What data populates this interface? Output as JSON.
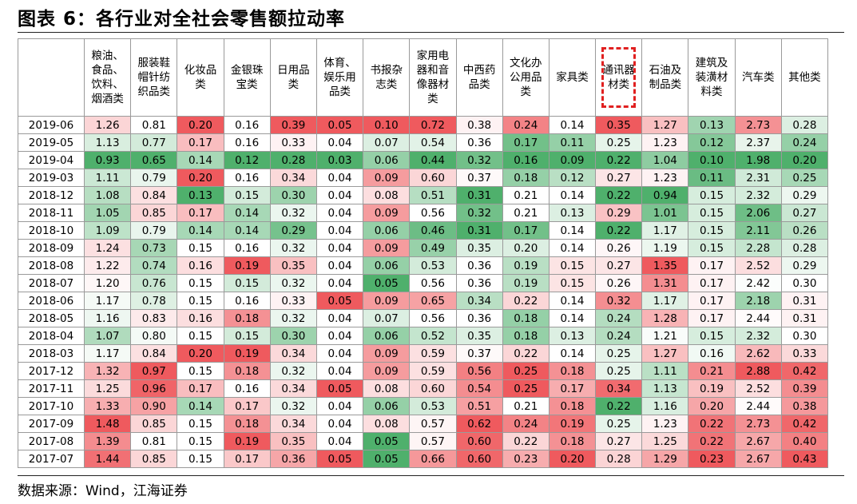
{
  "title": "图表 6：各行业对全社会零售额拉动率",
  "source": "数据来源：Wind，江海证券",
  "chart_data": {
    "type": "table",
    "highlighted_column": "通讯器材类",
    "color_scale": {
      "low": "#4fb06c",
      "mid": "#ffffff",
      "high": "#ef5a5e"
    },
    "columns": [
      "粮油、食品、饮料、烟酒类",
      "服装鞋帽针纺织品类",
      "化妆品类",
      "金银珠宝类",
      "日用品类",
      "体育、娱乐用品类",
      "书报杂志类",
      "家用电器和音像器材类",
      "中西药品类",
      "文化办公用品类",
      "家具类",
      "通讯器材类",
      "石油及制品类",
      "建筑及装潢材料类",
      "汽车类",
      "其他类"
    ],
    "rows": [
      {
        "date": "2019-06",
        "values": [
          "1.26",
          "0.81",
          "0.20",
          "0.16",
          "0.39",
          "0.05",
          "0.10",
          "0.72",
          "0.38",
          "0.24",
          "0.14",
          "0.35",
          "1.27",
          "0.13",
          "2.73",
          "0.28"
        ]
      },
      {
        "date": "2019-05",
        "values": [
          "1.13",
          "0.77",
          "0.17",
          "0.16",
          "0.33",
          "0.04",
          "0.07",
          "0.54",
          "0.36",
          "0.17",
          "0.11",
          "0.25",
          "1.23",
          "0.12",
          "2.37",
          "0.24"
        ]
      },
      {
        "date": "2019-04",
        "values": [
          "0.93",
          "0.65",
          "0.14",
          "0.12",
          "0.28",
          "0.03",
          "0.06",
          "0.44",
          "0.32",
          "0.16",
          "0.09",
          "0.22",
          "1.04",
          "0.10",
          "1.98",
          "0.20"
        ]
      },
      {
        "date": "2019-03",
        "values": [
          "1.11",
          "0.79",
          "0.20",
          "0.16",
          "0.34",
          "0.04",
          "0.09",
          "0.60",
          "0.37",
          "0.18",
          "0.12",
          "0.27",
          "1.23",
          "0.11",
          "2.31",
          "0.25"
        ]
      },
      {
        "date": "2018-12",
        "values": [
          "1.08",
          "0.84",
          "0.13",
          "0.15",
          "0.30",
          "0.04",
          "0.08",
          "0.51",
          "0.31",
          "0.21",
          "0.14",
          "0.22",
          "0.94",
          "0.15",
          "2.32",
          "0.29"
        ]
      },
      {
        "date": "2018-11",
        "values": [
          "1.05",
          "0.85",
          "0.17",
          "0.14",
          "0.32",
          "0.04",
          "0.09",
          "0.56",
          "0.32",
          "0.21",
          "0.13",
          "0.29",
          "1.01",
          "0.15",
          "2.06",
          "0.27"
        ]
      },
      {
        "date": "2018-10",
        "values": [
          "1.09",
          "0.79",
          "0.14",
          "0.14",
          "0.29",
          "0.04",
          "0.06",
          "0.46",
          "0.31",
          "0.17",
          "0.14",
          "0.22",
          "1.17",
          "0.15",
          "2.11",
          "0.26"
        ]
      },
      {
        "date": "2018-09",
        "values": [
          "1.24",
          "0.73",
          "0.15",
          "0.16",
          "0.32",
          "0.04",
          "0.09",
          "0.49",
          "0.35",
          "0.20",
          "0.14",
          "0.26",
          "1.19",
          "0.15",
          "2.28",
          "0.28"
        ]
      },
      {
        "date": "2018-08",
        "values": [
          "1.22",
          "0.74",
          "0.16",
          "0.19",
          "0.35",
          "0.04",
          "0.06",
          "0.53",
          "0.36",
          "0.19",
          "0.15",
          "0.27",
          "1.35",
          "0.17",
          "2.52",
          "0.29"
        ]
      },
      {
        "date": "2018-07",
        "values": [
          "1.20",
          "0.76",
          "0.15",
          "0.15",
          "0.32",
          "0.04",
          "0.05",
          "0.56",
          "0.36",
          "0.19",
          "0.15",
          "0.26",
          "1.31",
          "0.17",
          "2.42",
          "0.30"
        ]
      },
      {
        "date": "2018-06",
        "values": [
          "1.17",
          "0.78",
          "0.15",
          "0.16",
          "0.33",
          "0.05",
          "0.09",
          "0.65",
          "0.34",
          "0.22",
          "0.14",
          "0.32",
          "1.17",
          "0.17",
          "2.18",
          "0.31"
        ]
      },
      {
        "date": "2018-05",
        "values": [
          "1.16",
          "0.83",
          "0.16",
          "0.18",
          "0.32",
          "0.04",
          "0.07",
          "0.56",
          "0.36",
          "0.18",
          "0.14",
          "0.24",
          "1.28",
          "0.17",
          "2.44",
          "0.31"
        ]
      },
      {
        "date": "2018-04",
        "values": [
          "1.07",
          "0.80",
          "0.15",
          "0.15",
          "0.30",
          "0.04",
          "0.06",
          "0.52",
          "0.35",
          "0.18",
          "0.13",
          "0.24",
          "1.21",
          "0.15",
          "2.32",
          "0.30"
        ]
      },
      {
        "date": "2018-03",
        "values": [
          "1.17",
          "0.84",
          "0.20",
          "0.19",
          "0.34",
          "0.04",
          "0.09",
          "0.59",
          "0.37",
          "0.22",
          "0.14",
          "0.25",
          "1.27",
          "0.16",
          "2.62",
          "0.33"
        ]
      },
      {
        "date": "2017-12",
        "values": [
          "1.32",
          "0.97",
          "0.15",
          "0.18",
          "0.32",
          "0.04",
          "0.09",
          "0.59",
          "0.56",
          "0.25",
          "0.18",
          "0.25",
          "1.11",
          "0.21",
          "2.88",
          "0.42"
        ]
      },
      {
        "date": "2017-11",
        "values": [
          "1.25",
          "0.96",
          "0.17",
          "0.16",
          "0.34",
          "0.05",
          "0.08",
          "0.60",
          "0.54",
          "0.25",
          "0.17",
          "0.34",
          "1.13",
          "0.19",
          "2.52",
          "0.39"
        ]
      },
      {
        "date": "2017-10",
        "values": [
          "1.33",
          "0.90",
          "0.14",
          "0.17",
          "0.32",
          "0.04",
          "0.06",
          "0.53",
          "0.51",
          "0.21",
          "0.18",
          "0.22",
          "1.16",
          "0.20",
          "2.44",
          "0.38"
        ]
      },
      {
        "date": "2017-09",
        "values": [
          "1.48",
          "0.85",
          "0.15",
          "0.18",
          "0.34",
          "0.04",
          "0.08",
          "0.57",
          "0.62",
          "0.24",
          "0.19",
          "0.25",
          "1.23",
          "0.22",
          "2.73",
          "0.42"
        ]
      },
      {
        "date": "2017-08",
        "values": [
          "1.39",
          "0.81",
          "0.15",
          "0.19",
          "0.35",
          "0.04",
          "0.05",
          "0.57",
          "0.60",
          "0.22",
          "0.18",
          "0.27",
          "1.25",
          "0.22",
          "2.67",
          "0.40"
        ]
      },
      {
        "date": "2017-07",
        "values": [
          "1.44",
          "0.85",
          "0.15",
          "0.17",
          "0.36",
          "0.05",
          "0.05",
          "0.66",
          "0.60",
          "0.23",
          "0.20",
          "0.28",
          "1.29",
          "0.23",
          "2.67",
          "0.43"
        ]
      }
    ]
  }
}
